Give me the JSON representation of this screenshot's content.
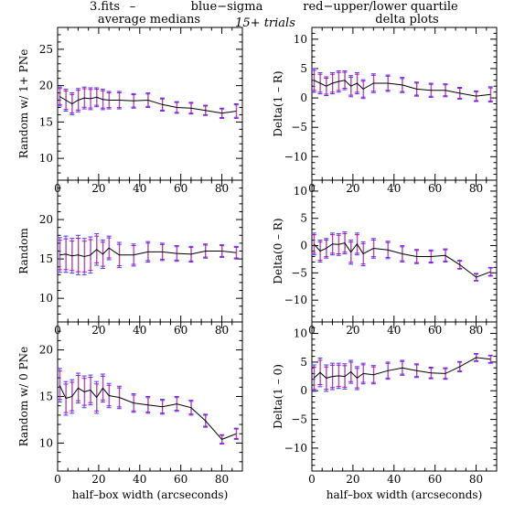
{
  "header": {
    "file": "3.fits",
    "dash": "–",
    "blue_note": "blue−sigma",
    "red_note": "red−upper/lower quartile",
    "left_col": "average medians",
    "trials": "15+ trials",
    "right_col": "delta plots"
  },
  "colors": {
    "blue": "#3a3aff",
    "red": "#ff2a2a",
    "magenta": "#c000c0",
    "line": "#000000"
  },
  "chart_data": [
    {
      "type": "line",
      "ylabel": "Random w/ 1+ PNe",
      "xlabel": "",
      "xlim": [
        0,
        90
      ],
      "ylim": [
        7,
        28
      ],
      "xticks": [
        0,
        20,
        40,
        60,
        80
      ],
      "yticks": [
        10,
        15,
        20,
        25
      ],
      "x": [
        1,
        4,
        7,
        10,
        13,
        16,
        19,
        22,
        25,
        30,
        37,
        44,
        51,
        58,
        65,
        72,
        80,
        87
      ],
      "y": [
        18.5,
        18.0,
        17.5,
        18.0,
        18.3,
        18.2,
        18.4,
        18.1,
        18.0,
        18.0,
        17.9,
        18.0,
        17.4,
        17.0,
        16.9,
        16.6,
        16.2,
        16.5
      ],
      "err": [
        1.3,
        1.5,
        1.5,
        1.6,
        1.5,
        1.5,
        1.3,
        1.4,
        1.2,
        1.2,
        1.0,
        1.0,
        0.9,
        0.8,
        0.8,
        0.7,
        0.7,
        1.0
      ]
    },
    {
      "type": "line",
      "ylabel": "Delta(1 – R)",
      "xlabel": "",
      "xlim": [
        0,
        90
      ],
      "ylim": [
        -14,
        12
      ],
      "xticks": [
        0,
        20,
        40,
        60,
        80
      ],
      "yticks": [
        -10,
        -5,
        0,
        5,
        10
      ],
      "x": [
        1,
        4,
        7,
        10,
        13,
        16,
        19,
        22,
        25,
        30,
        37,
        44,
        51,
        58,
        65,
        72,
        80,
        87
      ],
      "y": [
        3.0,
        2.5,
        2.0,
        2.5,
        2.8,
        3.0,
        2.0,
        2.5,
        1.5,
        2.5,
        2.5,
        2.2,
        1.5,
        1.3,
        1.3,
        0.8,
        0.3,
        0.6
      ],
      "err": [
        2.0,
        1.8,
        1.6,
        1.8,
        1.8,
        1.6,
        1.8,
        1.8,
        1.6,
        1.6,
        1.4,
        1.3,
        1.2,
        1.2,
        1.1,
        1.0,
        0.9,
        1.3
      ]
    },
    {
      "type": "line",
      "ylabel": "Random",
      "xlabel": "",
      "xlim": [
        0,
        90
      ],
      "ylim": [
        7,
        25
      ],
      "xticks": [
        0,
        20,
        40,
        60,
        80
      ],
      "yticks": [
        10,
        15,
        20
      ],
      "x": [
        1,
        4,
        7,
        10,
        13,
        16,
        19,
        22,
        25,
        30,
        37,
        44,
        51,
        58,
        65,
        72,
        80,
        87
      ],
      "y": [
        15.5,
        15.6,
        15.4,
        15.5,
        15.3,
        15.5,
        16.2,
        15.6,
        16.4,
        15.5,
        15.5,
        15.9,
        15.9,
        15.7,
        15.6,
        16.0,
        16.0,
        15.8
      ],
      "err": [
        2.2,
        2.3,
        2.2,
        2.5,
        2.3,
        2.3,
        2.0,
        1.8,
        1.5,
        1.6,
        1.4,
        1.3,
        1.1,
        1.0,
        1.0,
        0.9,
        0.8,
        0.8
      ]
    },
    {
      "type": "line",
      "ylabel": "Delta(0 – R)",
      "xlabel": "",
      "xlim": [
        0,
        90
      ],
      "ylim": [
        -14,
        12
      ],
      "xticks": [
        0,
        20,
        40,
        60,
        80
      ],
      "yticks": [
        -10,
        -5,
        0,
        5,
        10
      ],
      "x": [
        1,
        4,
        7,
        10,
        13,
        16,
        19,
        22,
        25,
        30,
        37,
        44,
        51,
        58,
        65,
        72,
        80,
        87
      ],
      "y": [
        0.3,
        -1.0,
        -0.5,
        0.3,
        0.2,
        0.5,
        -1.2,
        0.3,
        -1.5,
        -0.5,
        -0.8,
        -1.5,
        -2.0,
        -2.0,
        -1.8,
        -3.5,
        -5.8,
        -4.8
      ],
      "err": [
        2.0,
        2.0,
        1.8,
        2.0,
        2.0,
        2.0,
        2.2,
        2.0,
        2.2,
        1.8,
        1.6,
        1.5,
        1.3,
        1.2,
        1.2,
        0.8,
        0.7,
        0.8
      ]
    },
    {
      "type": "line",
      "ylabel": "Random w/ 0 PNe",
      "xlabel": "half–box width (arcseconds)",
      "xlim": [
        0,
        90
      ],
      "ylim": [
        7,
        23
      ],
      "xticks": [
        0,
        20,
        40,
        60,
        80
      ],
      "yticks": [
        10,
        15,
        20
      ],
      "x": [
        1,
        4,
        7,
        10,
        13,
        16,
        19,
        22,
        25,
        30,
        37,
        44,
        51,
        58,
        65,
        72,
        80,
        87
      ],
      "y": [
        16.2,
        14.8,
        15.0,
        15.9,
        15.5,
        15.7,
        14.9,
        15.9,
        15.1,
        14.9,
        14.3,
        14.1,
        13.9,
        14.2,
        13.8,
        12.4,
        10.4,
        11.0
      ],
      "err": [
        1.8,
        1.8,
        1.8,
        1.6,
        1.7,
        1.6,
        1.7,
        1.5,
        1.3,
        1.2,
        1.0,
        0.9,
        0.8,
        0.8,
        0.8,
        0.7,
        0.5,
        0.6
      ]
    },
    {
      "type": "line",
      "ylabel": "Delta(1 – 0)",
      "xlabel": "half–box width (arcseconds)",
      "xlim": [
        0,
        90
      ],
      "ylim": [
        -14,
        12
      ],
      "xticks": [
        0,
        20,
        40,
        60,
        80
      ],
      "yticks": [
        -10,
        -5,
        0,
        5,
        10
      ],
      "x": [
        1,
        4,
        7,
        10,
        13,
        16,
        19,
        22,
        25,
        30,
        37,
        44,
        51,
        58,
        65,
        72,
        80,
        87
      ],
      "y": [
        2.2,
        3.2,
        2.2,
        2.5,
        2.6,
        2.5,
        3.3,
        2.2,
        3.0,
        2.8,
        3.5,
        4.0,
        3.5,
        3.1,
        3.0,
        4.2,
        5.8,
        5.5
      ],
      "err": [
        2.3,
        2.5,
        2.3,
        2.3,
        2.2,
        2.2,
        2.0,
        2.0,
        1.8,
        1.6,
        1.5,
        1.3,
        1.2,
        1.0,
        1.0,
        0.9,
        0.7,
        0.7
      ]
    }
  ]
}
